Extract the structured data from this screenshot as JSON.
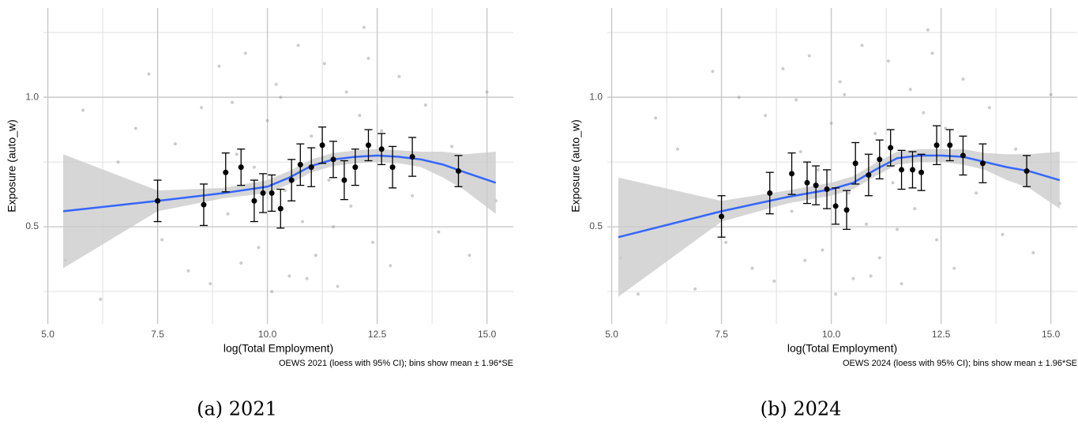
{
  "chart_data": [
    {
      "type": "scatter",
      "label": "(a) 2021",
      "caption": "OEWS 2021 (loess with 95% CI); bins show mean ± 1.96*SE",
      "x_label": "log(Total Employment)",
      "y_label": "Exposure (auto_w)",
      "xlim": [
        4.9,
        15.6
      ],
      "ylim": [
        0.125,
        1.345
      ],
      "xticks": [
        {
          "value": 5,
          "label": "5.0"
        },
        {
          "value": 7.5,
          "label": "7.5"
        },
        {
          "value": 10,
          "label": "10.0"
        },
        {
          "value": 12.5,
          "label": "12.5"
        },
        {
          "value": 15,
          "label": "15.0"
        }
      ],
      "yticks": [
        {
          "value": 0.5,
          "label": "0.5"
        },
        {
          "value": 1,
          "label": "1.0"
        }
      ],
      "minor_xticks": [
        6.25,
        8.75,
        11.25,
        13.75
      ],
      "minor_yticks": [
        0.25,
        0.75,
        1.25
      ],
      "grid": true,
      "point_color": "#999999",
      "bin_color": "#000000",
      "line_color": "#3366ff",
      "band_color": "#cccccc",
      "points": {
        "x": [
          5.4,
          5.8,
          6.2,
          6.6,
          7.0,
          7.3,
          7.6,
          7.9,
          8.2,
          8.5,
          8.7,
          8.9,
          9.1,
          9.2,
          9.4,
          9.5,
          9.7,
          9.8,
          10.0,
          10.1,
          10.2,
          10.4,
          10.5,
          10.7,
          10.8,
          11.0,
          11.1,
          11.3,
          11.4,
          11.6,
          11.8,
          11.9,
          12.1,
          12.2,
          12.4,
          12.6,
          12.8,
          13.0,
          13.3,
          13.6,
          13.9,
          14.2,
          14.6,
          15.0,
          15.2,
          9.3,
          10.3,
          11.5,
          12.3,
          10.9
        ],
        "y": [
          0.37,
          0.95,
          0.22,
          0.75,
          0.88,
          1.09,
          0.45,
          0.82,
          0.33,
          0.96,
          0.28,
          1.12,
          0.55,
          0.98,
          0.36,
          1.17,
          0.73,
          0.42,
          0.91,
          0.25,
          1.05,
          0.64,
          0.31,
          1.2,
          0.52,
          0.85,
          0.39,
          1.13,
          0.68,
          0.27,
          1.02,
          0.58,
          0.93,
          1.27,
          0.44,
          0.87,
          0.35,
          1.08,
          0.62,
          0.97,
          0.48,
          0.81,
          0.39,
          1.02,
          0.6,
          0.78,
          1.0,
          0.5,
          1.15,
          0.3
        ]
      },
      "bins": {
        "x": [
          7.5,
          8.55,
          9.05,
          9.4,
          9.7,
          9.9,
          10.1,
          10.3,
          10.55,
          10.75,
          11.0,
          11.25,
          11.5,
          11.75,
          12.0,
          12.3,
          12.6,
          12.85,
          13.3,
          14.35
        ],
        "values": [
          0.6,
          0.585,
          0.71,
          0.73,
          0.6,
          0.63,
          0.63,
          0.57,
          0.68,
          0.74,
          0.73,
          0.815,
          0.76,
          0.68,
          0.73,
          0.815,
          0.8,
          0.73,
          0.77,
          0.715
        ],
        "errors": [
          0.08,
          0.08,
          0.075,
          0.07,
          0.08,
          0.075,
          0.07,
          0.075,
          0.08,
          0.08,
          0.075,
          0.07,
          0.07,
          0.075,
          0.07,
          0.06,
          0.06,
          0.08,
          0.075,
          0.06
        ]
      },
      "loess": {
        "x": [
          5.35,
          7.5,
          9,
          10,
          10.5,
          11,
          11.5,
          12,
          12.5,
          13,
          13.5,
          14,
          14.5,
          15.2
        ],
        "values": [
          0.56,
          0.6,
          0.63,
          0.655,
          0.69,
          0.735,
          0.76,
          0.77,
          0.775,
          0.77,
          0.76,
          0.74,
          0.71,
          0.67
        ],
        "lower": [
          0.34,
          0.56,
          0.61,
          0.63,
          0.665,
          0.71,
          0.735,
          0.745,
          0.75,
          0.745,
          0.73,
          0.69,
          0.64,
          0.55
        ],
        "upper": [
          0.78,
          0.64,
          0.65,
          0.68,
          0.715,
          0.76,
          0.785,
          0.795,
          0.8,
          0.795,
          0.79,
          0.79,
          0.78,
          0.79
        ]
      }
    },
    {
      "type": "scatter",
      "label": "(b) 2024",
      "caption": "OEWS 2024 (loess with 95% CI); bins show mean ± 1.96*SE",
      "x_label": "log(Total Employment)",
      "y_label": "Exposure (auto_w)",
      "xlim": [
        4.9,
        15.6
      ],
      "ylim": [
        0.125,
        1.345
      ],
      "xticks": [
        {
          "value": 5,
          "label": "5.0"
        },
        {
          "value": 7.5,
          "label": "7.5"
        },
        {
          "value": 10,
          "label": "10.0"
        },
        {
          "value": 12.5,
          "label": "12.5"
        },
        {
          "value": 15,
          "label": "15.0"
        }
      ],
      "yticks": [
        {
          "value": 0.5,
          "label": "0.5"
        },
        {
          "value": 1,
          "label": "1.0"
        }
      ],
      "minor_xticks": [
        6.25,
        8.75,
        11.25,
        13.75
      ],
      "minor_yticks": [
        0.25,
        0.75,
        1.25
      ],
      "grid": true,
      "point_color": "#999999",
      "bin_color": "#000000",
      "line_color": "#3366ff",
      "band_color": "#cccccc",
      "points": {
        "x": [
          5.2,
          5.6,
          6.0,
          6.5,
          6.9,
          7.3,
          7.6,
          7.9,
          8.2,
          8.5,
          8.7,
          8.9,
          9.1,
          9.2,
          9.4,
          9.5,
          9.7,
          9.8,
          10.0,
          10.1,
          10.2,
          10.4,
          10.5,
          10.7,
          10.8,
          11.0,
          11.1,
          11.3,
          11.4,
          11.6,
          11.8,
          11.9,
          12.1,
          12.2,
          12.4,
          12.6,
          12.8,
          13.0,
          13.3,
          13.6,
          13.9,
          14.2,
          14.6,
          15.0,
          15.2,
          9.3,
          10.3,
          11.5,
          12.3,
          10.9
        ],
        "y": [
          0.38,
          0.24,
          0.92,
          0.8,
          0.26,
          1.1,
          0.44,
          1.0,
          0.34,
          0.93,
          0.29,
          1.11,
          0.56,
          0.99,
          0.37,
          1.16,
          0.72,
          0.41,
          0.9,
          0.24,
          1.06,
          0.63,
          0.3,
          1.2,
          0.51,
          0.86,
          0.38,
          1.14,
          0.67,
          0.28,
          1.03,
          0.57,
          0.94,
          1.26,
          0.45,
          0.88,
          0.34,
          1.07,
          0.63,
          0.96,
          0.47,
          0.8,
          0.4,
          1.01,
          0.59,
          0.79,
          1.01,
          0.49,
          1.17,
          0.31
        ]
      },
      "bins": {
        "x": [
          7.5,
          8.6,
          9.1,
          9.45,
          9.65,
          9.9,
          10.1,
          10.35,
          10.55,
          10.85,
          11.1,
          11.35,
          11.6,
          11.85,
          12.05,
          12.4,
          12.7,
          13.0,
          13.45,
          14.45
        ],
        "values": [
          0.54,
          0.63,
          0.705,
          0.67,
          0.66,
          0.645,
          0.58,
          0.565,
          0.745,
          0.7,
          0.76,
          0.805,
          0.72,
          0.72,
          0.71,
          0.815,
          0.815,
          0.775,
          0.745,
          0.715
        ],
        "errors": [
          0.08,
          0.08,
          0.08,
          0.08,
          0.075,
          0.075,
          0.07,
          0.075,
          0.08,
          0.08,
          0.075,
          0.07,
          0.075,
          0.07,
          0.07,
          0.075,
          0.06,
          0.075,
          0.075,
          0.06
        ]
      },
      "loess": {
        "x": [
          5.15,
          7.5,
          9,
          10,
          10.5,
          11,
          11.5,
          12,
          12.5,
          13,
          13.5,
          14,
          14.5,
          15.2
        ],
        "values": [
          0.46,
          0.56,
          0.615,
          0.645,
          0.67,
          0.72,
          0.765,
          0.775,
          0.775,
          0.77,
          0.75,
          0.73,
          0.715,
          0.68
        ],
        "lower": [
          0.23,
          0.52,
          0.59,
          0.62,
          0.645,
          0.695,
          0.74,
          0.75,
          0.75,
          0.74,
          0.72,
          0.68,
          0.65,
          0.57
        ],
        "upper": [
          0.69,
          0.6,
          0.64,
          0.67,
          0.695,
          0.745,
          0.79,
          0.8,
          0.8,
          0.8,
          0.785,
          0.78,
          0.78,
          0.79
        ]
      }
    }
  ]
}
